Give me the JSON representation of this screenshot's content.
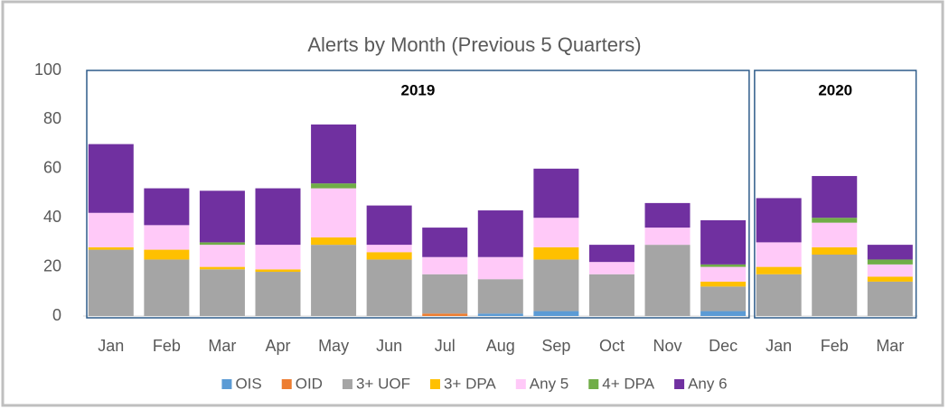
{
  "chart_data": {
    "type": "stacked_bar",
    "title": "Alerts by Month (Previous 5 Quarters)",
    "categories": [
      "Jan",
      "Feb",
      "Mar",
      "Apr",
      "May",
      "Jun",
      "Jul",
      "Aug",
      "Sep",
      "Oct",
      "Nov",
      "Dec",
      "Jan",
      "Feb",
      "Mar"
    ],
    "groups": [
      {
        "label": "2019",
        "count": 12
      },
      {
        "label": "2020",
        "count": 3
      }
    ],
    "series": [
      {
        "name": "OIS",
        "color": "#5b9bd5",
        "values": [
          0,
          0,
          0,
          0,
          0,
          0,
          0,
          1,
          2,
          0,
          0,
          2,
          0,
          0,
          0
        ]
      },
      {
        "name": "OID",
        "color": "#ed7d31",
        "values": [
          0,
          0,
          0,
          0,
          0,
          0,
          1,
          0,
          0,
          0,
          0,
          0,
          0,
          0,
          0
        ]
      },
      {
        "name": "3+ UOF",
        "color": "#a5a5a5",
        "values": [
          27,
          23,
          19,
          18,
          29,
          23,
          16,
          14,
          21,
          17,
          29,
          10,
          17,
          25,
          14
        ]
      },
      {
        "name": "3+ DPA",
        "color": "#ffc000",
        "values": [
          1,
          4,
          1,
          1,
          3,
          3,
          0,
          0,
          5,
          0,
          0,
          2,
          3,
          3,
          2
        ]
      },
      {
        "name": "Any 5",
        "color": "#ffc9f8",
        "values": [
          14,
          10,
          9,
          10,
          20,
          3,
          7,
          9,
          12,
          5,
          7,
          6,
          10,
          10,
          5
        ]
      },
      {
        "name": "4+ DPA",
        "color": "#70ad47",
        "values": [
          0,
          0,
          1,
          0,
          2,
          0,
          0,
          0,
          0,
          0,
          0,
          1,
          0,
          2,
          2
        ]
      },
      {
        "name": "Any 6",
        "color": "#7030a0",
        "values": [
          28,
          15,
          21,
          23,
          24,
          16,
          12,
          19,
          20,
          7,
          10,
          18,
          18,
          17,
          6
        ]
      }
    ],
    "ylim": [
      0,
      100
    ],
    "yticks": [
      0,
      20,
      40,
      60,
      80,
      100
    ],
    "legend": "bottom",
    "grid": false
  }
}
